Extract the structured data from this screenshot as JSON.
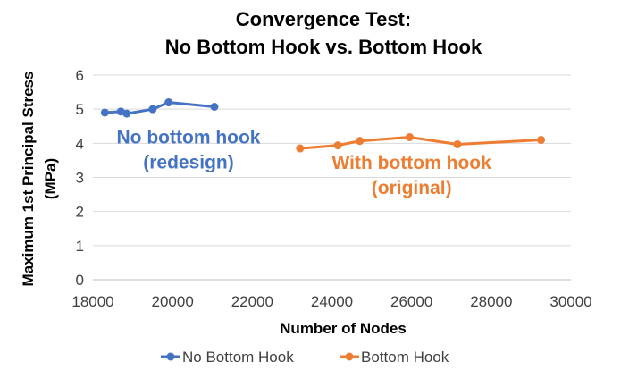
{
  "chart_data": {
    "type": "scatter",
    "title": [
      "Convergence Test:",
      "No Bottom Hook vs. Bottom Hook"
    ],
    "xlabel": "Number of Nodes",
    "ylabel": [
      "Maximum 1st Principal Stress",
      "(MPa)"
    ],
    "xlim": [
      18000,
      30000
    ],
    "ylim": [
      0,
      6
    ],
    "xticks": [
      18000,
      20000,
      22000,
      24000,
      26000,
      28000,
      30000
    ],
    "yticks": [
      0,
      1,
      2,
      3,
      4,
      5,
      6
    ],
    "grid": true,
    "legend_position": "bottom",
    "series": [
      {
        "name": "No Bottom Hook",
        "color": "#4472C4",
        "x": [
          18300,
          18700,
          18850,
          19500,
          19900,
          21050
        ],
        "y": [
          4.9,
          4.93,
          4.87,
          5.0,
          5.2,
          5.07
        ]
      },
      {
        "name": "Bottom Hook",
        "color": "#ED7D31",
        "x": [
          23200,
          24150,
          24700,
          25950,
          27150,
          29250
        ],
        "y": [
          3.85,
          3.94,
          4.07,
          4.18,
          3.97,
          4.1
        ]
      }
    ],
    "annotations": [
      {
        "lines": [
          "No bottom hook",
          "(redesign)"
        ],
        "color": "#4472C4",
        "x": 20400,
        "y": 4.0
      },
      {
        "lines": [
          "With bottom hook",
          "(original)"
        ],
        "color": "#ED7D31",
        "x": 26000,
        "y": 3.25
      }
    ]
  }
}
